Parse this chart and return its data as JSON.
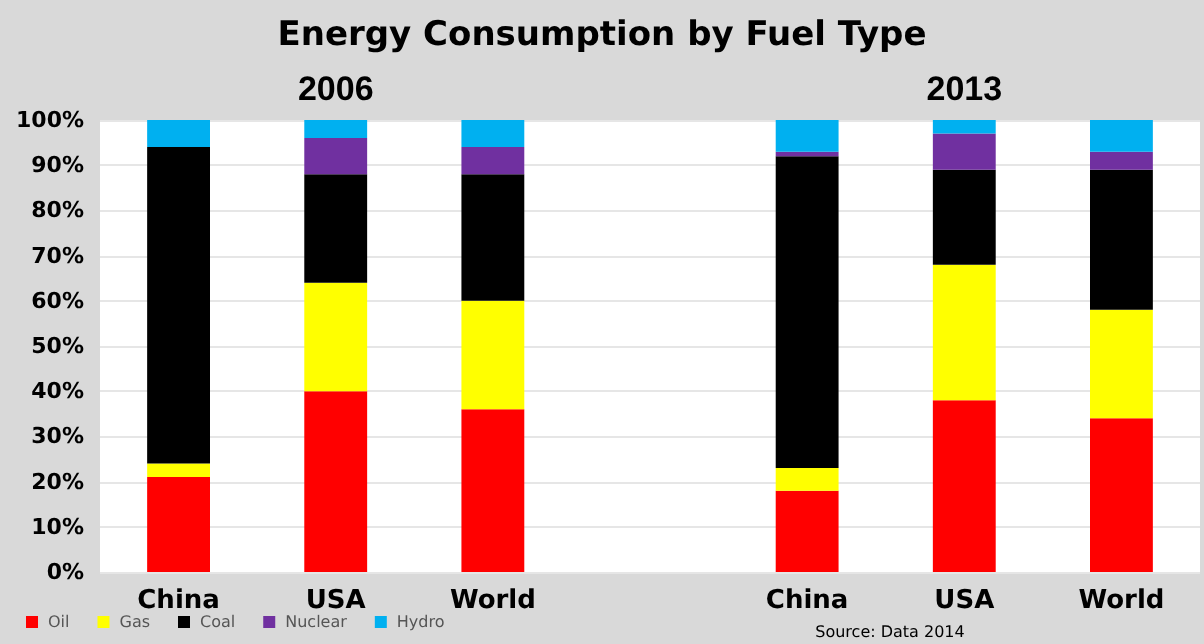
{
  "chart_data": {
    "type": "bar",
    "title": "Energy Consumption by Fuel Type",
    "stacked": true,
    "categories": [
      "China",
      "USA",
      "World",
      null,
      "China",
      "USA",
      "World"
    ],
    "series": [
      {
        "name": "Oil",
        "color": "#ff0000",
        "values": [
          21,
          40,
          36,
          null,
          18,
          38,
          34
        ]
      },
      {
        "name": "Gas",
        "color": "#ffff00",
        "values": [
          3,
          24,
          24,
          null,
          5,
          30,
          24
        ]
      },
      {
        "name": "Coal",
        "color": "#000000",
        "values": [
          70,
          24,
          28,
          null,
          69,
          21,
          31
        ]
      },
      {
        "name": "Nuclear",
        "color": "#7030a0",
        "values": [
          0,
          8,
          6,
          null,
          1,
          8,
          4
        ]
      },
      {
        "name": "Hydro",
        "color": "#00b0f0",
        "values": [
          6,
          4,
          6,
          null,
          7,
          3,
          7
        ]
      }
    ],
    "ylim": [
      0,
      100
    ],
    "yticks": [
      {
        "value": 0,
        "label": "0%"
      },
      {
        "value": 10,
        "label": "10%"
      },
      {
        "value": 20,
        "label": "20%"
      },
      {
        "value": 30,
        "label": "30%"
      },
      {
        "value": 40,
        "label": "40%"
      },
      {
        "value": 50,
        "label": "50%"
      },
      {
        "value": 60,
        "label": "60%"
      },
      {
        "value": 70,
        "label": "70%"
      },
      {
        "value": 80,
        "label": "80%"
      },
      {
        "value": 90,
        "label": "90%"
      },
      {
        "value": 100,
        "label": "100%"
      }
    ],
    "grid": "y",
    "legend": "bottom left",
    "annotations": [
      "2006",
      "2013",
      "Source: Data 2014"
    ]
  }
}
